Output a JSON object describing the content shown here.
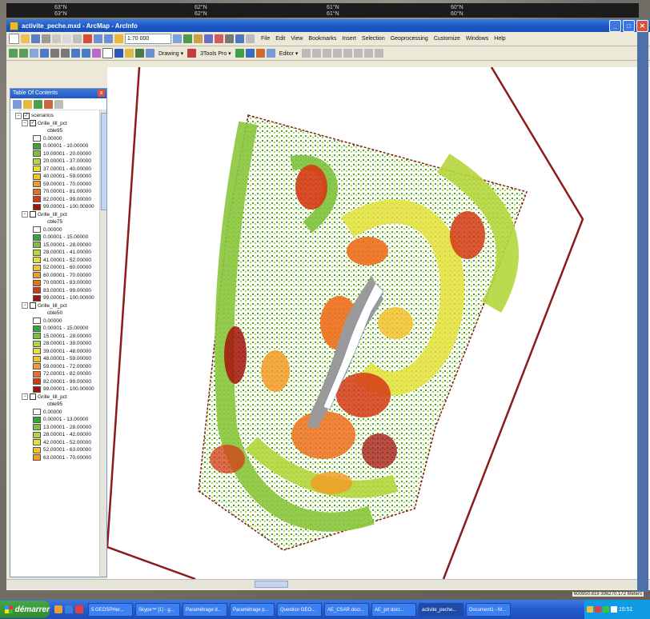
{
  "top_strip": {
    "labels": [
      "63°N",
      "62°N",
      "61°N",
      "60°N",
      "63°N",
      "62°N",
      "61°N",
      "60°N"
    ]
  },
  "window": {
    "title": "activite_peche.mxd - ArcMap - ArcInfo",
    "scale": "1:70 000",
    "menus": [
      "File",
      "Edit",
      "View",
      "Bookmarks",
      "Insert",
      "Selection",
      "Geoprocessing",
      "Customize",
      "Windows",
      "Help"
    ],
    "drawing_label": "Drawing ▾",
    "tools_label": "3Tools Pro ▾",
    "editor_label": "Editor ▾"
  },
  "toc": {
    "title": "Table Of Contents",
    "root": "scenarios",
    "groups": [
      {
        "name": "Grille_lill_pct",
        "checked": true,
        "field": "cble95",
        "classes": [
          {
            "label": "0.00000",
            "color": "#ffffff"
          },
          {
            "label": "0.00001 - 10.00000",
            "color": "#3aa53a"
          },
          {
            "label": "10.00001 - 20.00000",
            "color": "#7dc23d"
          },
          {
            "label": "20.00001 - 37.00000",
            "color": "#b4d63c"
          },
          {
            "label": "37.00001 - 40.00000",
            "color": "#e4e03a"
          },
          {
            "label": "40.00001 - 59.00000",
            "color": "#f4c22e"
          },
          {
            "label": "59.00001 - 70.00000",
            "color": "#f59a23"
          },
          {
            "label": "70.00001 - 81.00000",
            "color": "#ee6e1c"
          },
          {
            "label": "82.00001 - 99.00000",
            "color": "#d53a14"
          },
          {
            "label": "99.00001 - 100.00000",
            "color": "#a4120c"
          }
        ]
      },
      {
        "name": "Grille_lill_pct",
        "checked": false,
        "field": "cble75",
        "classes": [
          {
            "label": "0.00000",
            "color": "#ffffff"
          },
          {
            "label": "0.00001 - 15.00000",
            "color": "#3aa53a"
          },
          {
            "label": "15.00001 - 28.00000",
            "color": "#7dc23d"
          },
          {
            "label": "28.00001 - 41.00000",
            "color": "#b4d63c"
          },
          {
            "label": "41.00001 - 52.00000",
            "color": "#e4e03a"
          },
          {
            "label": "52.00001 - 60.00000",
            "color": "#f4c22e"
          },
          {
            "label": "60.00001 - 70.00000",
            "color": "#f59a23"
          },
          {
            "label": "70.00001 - 83.00000",
            "color": "#ee6e1c"
          },
          {
            "label": "83.00001 - 99.00000",
            "color": "#d53a14"
          },
          {
            "label": "99.00001 - 100.00000",
            "color": "#a4120c"
          }
        ]
      },
      {
        "name": "Grille_lill_pct",
        "checked": false,
        "field": "cble50",
        "classes": [
          {
            "label": "0.00000",
            "color": "#ffffff"
          },
          {
            "label": "0.00001 - 15.00000",
            "color": "#3aa53a"
          },
          {
            "label": "15.00001 - 28.00000",
            "color": "#7dc23d"
          },
          {
            "label": "28.00001 - 39.00000",
            "color": "#b4d63c"
          },
          {
            "label": "39.00001 - 48.00000",
            "color": "#e4e03a"
          },
          {
            "label": "48.00001 - 59.00000",
            "color": "#f4c22e"
          },
          {
            "label": "59.00001 - 72.00000",
            "color": "#f59a23"
          },
          {
            "label": "72.00001 - 82.00000",
            "color": "#ee6e1c"
          },
          {
            "label": "82.00001 - 99.00000",
            "color": "#d53a14"
          },
          {
            "label": "99.00001 - 100.00000",
            "color": "#a4120c"
          }
        ]
      },
      {
        "name": "Grille_lill_pct",
        "checked": false,
        "field": "cble95",
        "classes": [
          {
            "label": "0.00000",
            "color": "#ffffff"
          },
          {
            "label": "0.00001 - 13.00000",
            "color": "#3aa53a"
          },
          {
            "label": "13.00001 - 28.00000",
            "color": "#7dc23d"
          },
          {
            "label": "28.00001 - 42.00000",
            "color": "#b4d63c"
          },
          {
            "label": "42.00001 - 52.00000",
            "color": "#e4e03a"
          },
          {
            "label": "52.00001 - 63.00000",
            "color": "#f4c22e"
          },
          {
            "label": "63.00001 - 70.00000",
            "color": "#f59a23"
          }
        ]
      }
    ]
  },
  "status": {
    "coordinates": "600950.819  396270.172 Meters"
  },
  "taskbar": {
    "start_label": "démarrer",
    "tasks": [
      "5 GEOSPHer...",
      "Skype™ [1] - g...",
      "Paramétrage d...",
      "Paramétrage p...",
      "Question GEO...",
      "AE_CSAR docr...",
      "AE_prt docr...",
      "activite_peche...",
      "Document1 - M..."
    ],
    "clock": "15:51"
  },
  "colors": {
    "bound_line": "#8b1a1a",
    "gray_area": "#9a9a9a",
    "channel": "#ffffff"
  }
}
